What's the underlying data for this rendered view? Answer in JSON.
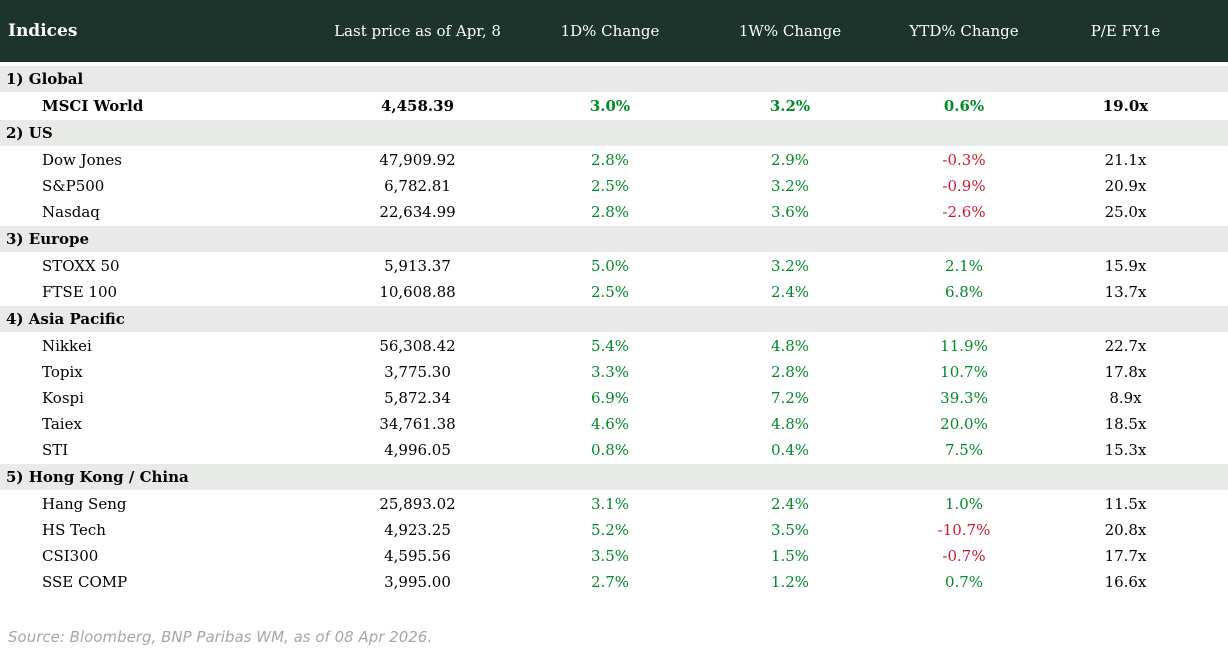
{
  "chart_data": {
    "type": "table",
    "columns": [
      "Indices",
      "Last price as of Apr, 8",
      "1D% Change",
      "1W% Change",
      "YTD% Change",
      "P/E FY1e"
    ],
    "sections": [
      {
        "label": "1) Global",
        "rows": [
          {
            "name": "MSCI World",
            "price": "4,458.39",
            "d1": "3.0%",
            "w1": "3.2%",
            "ytd": "0.6%",
            "pe": "19.0x",
            "bold": true
          }
        ]
      },
      {
        "label": "2) US",
        "rows": [
          {
            "name": "Dow Jones",
            "price": "47,909.92",
            "d1": "2.8%",
            "w1": "2.9%",
            "ytd": "-0.3%",
            "pe": "21.1x"
          },
          {
            "name": "S&P500",
            "price": "6,782.81",
            "d1": "2.5%",
            "w1": "3.2%",
            "ytd": "-0.9%",
            "pe": "20.9x"
          },
          {
            "name": "Nasdaq",
            "price": "22,634.99",
            "d1": "2.8%",
            "w1": "3.6%",
            "ytd": "-2.6%",
            "pe": "25.0x"
          }
        ]
      },
      {
        "label": "3) Europe",
        "rows": [
          {
            "name": "STOXX 50",
            "price": "5,913.37",
            "d1": "5.0%",
            "w1": "3.2%",
            "ytd": "2.1%",
            "pe": "15.9x"
          },
          {
            "name": "FTSE 100",
            "price": "10,608.88",
            "d1": "2.5%",
            "w1": "2.4%",
            "ytd": "6.8%",
            "pe": "13.7x"
          }
        ]
      },
      {
        "label": "4) Asia Pacific",
        "rows": [
          {
            "name": "Nikkei",
            "price": "56,308.42",
            "d1": "5.4%",
            "w1": "4.8%",
            "ytd": "11.9%",
            "pe": "22.7x"
          },
          {
            "name": "Topix",
            "price": "3,775.30",
            "d1": "3.3%",
            "w1": "2.8%",
            "ytd": "10.7%",
            "pe": "17.8x"
          },
          {
            "name": "Kospi",
            "price": "5,872.34",
            "d1": "6.9%",
            "w1": "7.2%",
            "ytd": "39.3%",
            "pe": "8.9x"
          },
          {
            "name": "Taiex",
            "price": "34,761.38",
            "d1": "4.6%",
            "w1": "4.8%",
            "ytd": "20.0%",
            "pe": "18.5x"
          },
          {
            "name": "STI",
            "price": "4,996.05",
            "d1": "0.8%",
            "w1": "0.4%",
            "ytd": "7.5%",
            "pe": "15.3x"
          }
        ]
      },
      {
        "label": "5) Hong Kong / China",
        "rows": [
          {
            "name": "Hang Seng",
            "price": "25,893.02",
            "d1": "3.1%",
            "w1": "2.4%",
            "ytd": "1.0%",
            "pe": "11.5x"
          },
          {
            "name": "HS Tech",
            "price": "4,923.25",
            "d1": "5.2%",
            "w1": "3.5%",
            "ytd": "-10.7%",
            "pe": "20.8x"
          },
          {
            "name": "CSI300",
            "price": "4,595.56",
            "d1": "3.5%",
            "w1": "1.5%",
            "ytd": "-0.7%",
            "pe": "17.7x"
          },
          {
            "name": "SSE COMP",
            "price": "3,995.00",
            "d1": "2.7%",
            "w1": "1.2%",
            "ytd": "0.7%",
            "pe": "16.6x"
          }
        ]
      }
    ]
  },
  "footer": {
    "source": "Source: Bloomberg, BNP Paribas WM, as of 08 Apr 2026."
  },
  "colors": {
    "header_bg": "#1d342c",
    "header_text": "#ffffff",
    "section_bg": "#e7eae6",
    "positive": "#008a28",
    "negative": "#d01931",
    "text": "#000000",
    "source_text": "#a0a8ac"
  }
}
